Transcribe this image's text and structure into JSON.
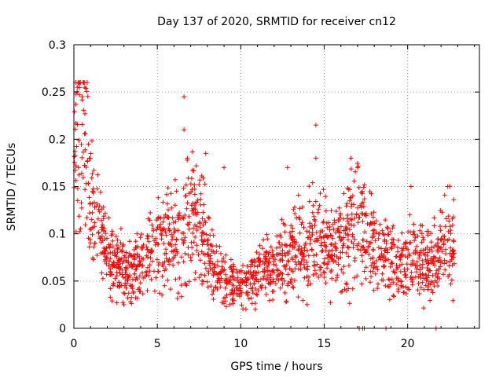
{
  "chart_data": {
    "type": "scatter",
    "title": "Day 137 of 2020, SRMTID for receiver cn12",
    "xlabel": "GPS time / hours",
    "ylabel": "SRMTID / TECUs",
    "xlim": [
      0,
      24.3
    ],
    "ylim": [
      0,
      0.3
    ],
    "x_ticks": [
      0,
      5,
      10,
      15,
      20
    ],
    "x_tick_labels": [
      "0",
      "5",
      "10",
      "15",
      "20"
    ],
    "y_ticks": [
      0,
      0.05,
      0.1,
      0.15,
      0.2,
      0.25,
      0.3
    ],
    "y_tick_labels": [
      "0",
      "0.05",
      "0.1",
      "0.15",
      "0.2",
      "0.25",
      "0.3"
    ],
    "grid": true,
    "marker": "+",
    "color": "#ff0000",
    "series": [
      {
        "name": "SRMTID",
        "profile": [
          [
            0.0,
            0.19
          ],
          [
            0.3,
            0.22
          ],
          [
            0.6,
            0.19
          ],
          [
            1.0,
            0.16
          ],
          [
            1.3,
            0.12
          ],
          [
            1.6,
            0.1
          ],
          [
            2.0,
            0.08
          ],
          [
            2.5,
            0.065
          ],
          [
            3.0,
            0.06
          ],
          [
            3.5,
            0.058
          ],
          [
            4.0,
            0.065
          ],
          [
            4.5,
            0.08
          ],
          [
            5.0,
            0.09
          ],
          [
            5.5,
            0.095
          ],
          [
            6.0,
            0.1
          ],
          [
            6.5,
            0.11
          ],
          [
            7.0,
            0.12
          ],
          [
            7.5,
            0.11
          ],
          [
            8.0,
            0.08
          ],
          [
            8.5,
            0.065
          ],
          [
            9.0,
            0.05
          ],
          [
            9.5,
            0.045
          ],
          [
            10.0,
            0.045
          ],
          [
            10.5,
            0.05
          ],
          [
            11.0,
            0.055
          ],
          [
            11.5,
            0.06
          ],
          [
            12.0,
            0.07
          ],
          [
            12.5,
            0.075
          ],
          [
            13.0,
            0.08
          ],
          [
            13.5,
            0.085
          ],
          [
            14.0,
            0.09
          ],
          [
            14.5,
            0.095
          ],
          [
            15.0,
            0.085
          ],
          [
            15.5,
            0.085
          ],
          [
            16.0,
            0.09
          ],
          [
            16.5,
            0.1
          ],
          [
            17.0,
            0.11
          ],
          [
            17.5,
            0.1
          ],
          [
            18.0,
            0.09
          ],
          [
            18.5,
            0.08
          ],
          [
            19.0,
            0.075
          ],
          [
            19.5,
            0.07
          ],
          [
            20.0,
            0.07
          ],
          [
            20.5,
            0.075
          ],
          [
            21.0,
            0.07
          ],
          [
            21.5,
            0.075
          ],
          [
            22.0,
            0.08
          ],
          [
            22.5,
            0.09
          ],
          [
            22.8,
            0.09
          ]
        ],
        "spikes": [
          [
            0.2,
            0.255
          ],
          [
            0.5,
            0.245
          ],
          [
            6.6,
            0.245
          ],
          [
            6.6,
            0.21
          ],
          [
            6.8,
            0.18
          ],
          [
            7.9,
            0.185
          ],
          [
            9.0,
            0.17
          ],
          [
            14.5,
            0.215
          ],
          [
            14.5,
            0.18
          ],
          [
            16.6,
            0.18
          ],
          [
            17.0,
            0.17
          ],
          [
            22.4,
            0.15
          ],
          [
            20.2,
            0.15
          ],
          [
            12.8,
            0.17
          ]
        ],
        "zeros": [
          17.1,
          17.3,
          17.4,
          18.7,
          21.7
        ]
      }
    ]
  }
}
